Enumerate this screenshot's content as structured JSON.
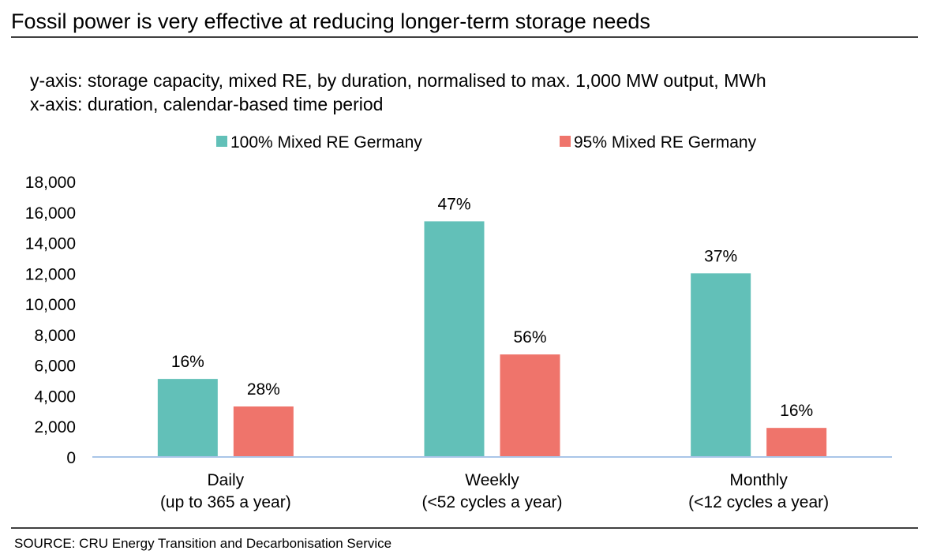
{
  "chart_data": {
    "type": "bar",
    "title": "Fossil power is very effective at reducing longer-term storage needs",
    "subtitle_lines": [
      "y-axis: storage capacity, mixed RE, by duration, normalised to max. 1,000 MW output, MWh",
      "x-axis: duration, calendar-based time period"
    ],
    "categories": [
      [
        "Daily",
        "(up to 365 a year)"
      ],
      [
        "Weekly",
        "(<52 cycles a year)"
      ],
      [
        "Monthly",
        "(<12 cycles a year)"
      ]
    ],
    "series": [
      {
        "name": "100% Mixed RE Germany",
        "color": "#62c0b8",
        "values": [
          5100,
          15400,
          12000
        ],
        "labels": [
          "16%",
          "47%",
          "37%"
        ]
      },
      {
        "name": "95% Mixed RE Germany",
        "color": "#ef746b",
        "values": [
          3300,
          6700,
          1900
        ],
        "labels": [
          "28%",
          "56%",
          "16%"
        ]
      }
    ],
    "ylim": [
      0,
      18000
    ],
    "yticks": [
      0,
      2000,
      4000,
      6000,
      8000,
      10000,
      12000,
      14000,
      16000,
      18000
    ],
    "ytick_labels": [
      "0",
      "2,000",
      "4,000",
      "6,000",
      "8,000",
      "10,000",
      "12,000",
      "14,000",
      "16,000",
      "18,000"
    ],
    "xlabel": "",
    "ylabel": "",
    "grid": false,
    "legend_position": "top-center",
    "axis_color": "#a9c5e8",
    "source": "SOURCE: CRU Energy Transition and Decarbonisation Service"
  }
}
